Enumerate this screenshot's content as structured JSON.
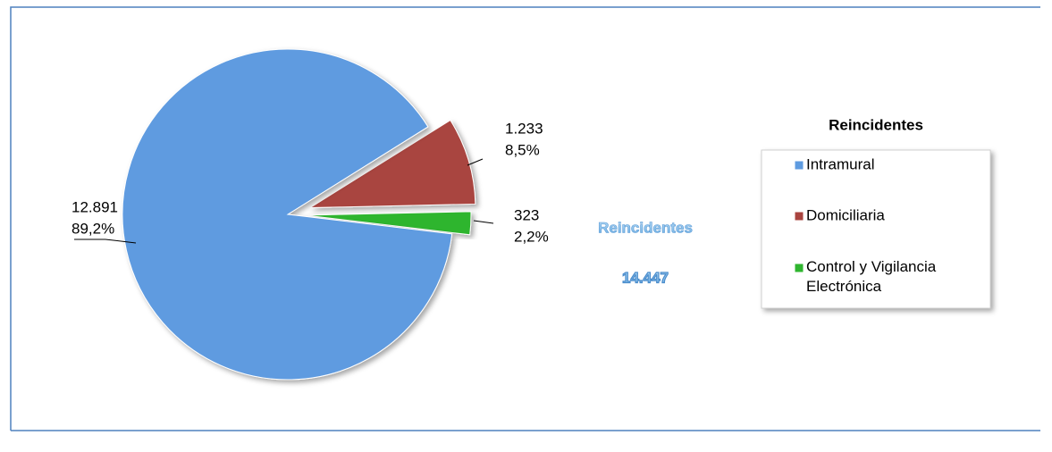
{
  "chart_data": {
    "type": "pie",
    "categories": [
      "Intramural",
      "Domiciliaria",
      "Control y Vigilancia Electrónica"
    ],
    "values": [
      12891,
      1233,
      323
    ],
    "value_labels": [
      "12.891",
      "1.233",
      "323"
    ],
    "percents": [
      89.2,
      8.5,
      2.2
    ],
    "percent_labels": [
      "89,2%",
      "8,5%",
      "2,2%"
    ],
    "colors": [
      "#5e9be0",
      "#a9443f",
      "#2fb52f"
    ],
    "total_title": "Reincidentes",
    "total": 14447,
    "total_label": "14.447",
    "legend_title": "Reincidentes",
    "legend": "right"
  }
}
